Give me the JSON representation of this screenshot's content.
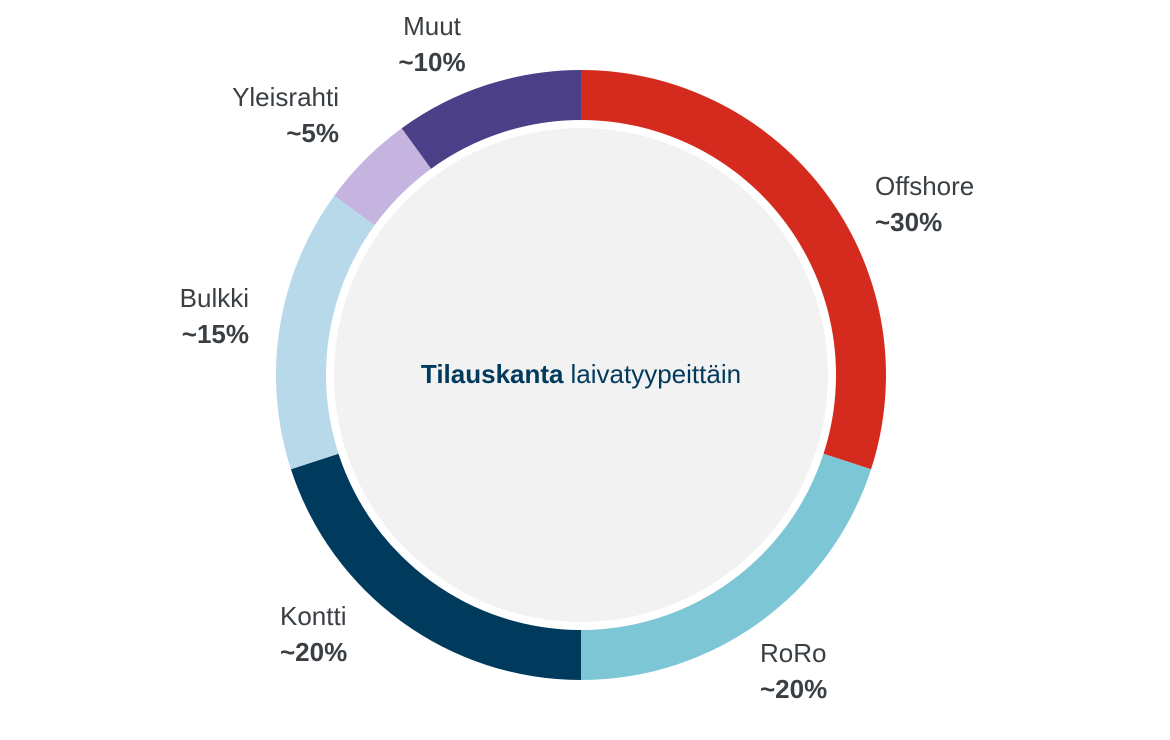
{
  "chart_data": {
    "type": "donut",
    "center_title": {
      "bold": "Tilauskanta",
      "text": "laivatyypeittäin"
    },
    "categories": [
      "Offshore",
      "RoRo",
      "Kontti",
      "Bulkki",
      "Yleisrahti",
      "Muut"
    ],
    "values": [
      30,
      20,
      20,
      15,
      5,
      10
    ],
    "value_labels": [
      "~30%",
      "~20%",
      "~20%",
      "~15%",
      "~5%",
      "~10%"
    ],
    "colors": [
      "#d52b1e",
      "#7cc6d6",
      "#003a5d",
      "#b8d9ea",
      "#c5b3e0",
      "#4b3f87"
    ]
  }
}
